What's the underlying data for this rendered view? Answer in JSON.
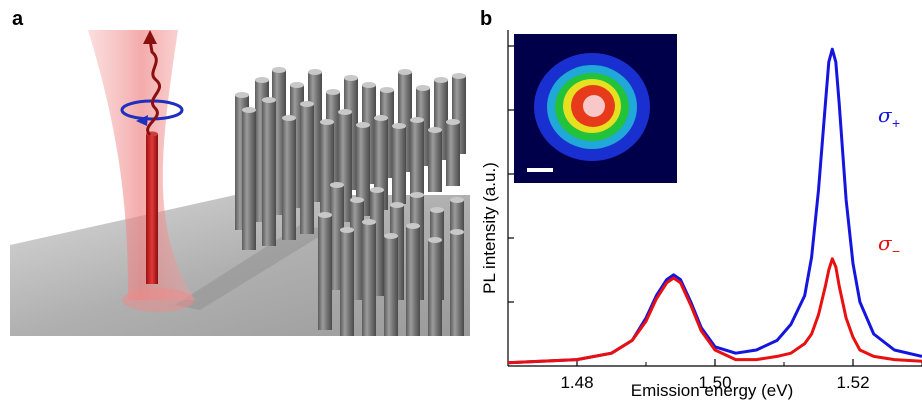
{
  "figure": {
    "panel_a_label": "a",
    "panel_b_label": "b"
  },
  "chart_data": {
    "type": "line",
    "xlabel": "Emission energy (eV)",
    "ylabel": "PL intensity (a.u.)",
    "xlim": [
      1.47,
      1.53
    ],
    "ylim": [
      0,
      1.05
    ],
    "xticks": [
      "1.48",
      "1.50",
      "1.52"
    ],
    "grid": false,
    "inset": "emission spot image (false-color) with scale bar",
    "series": [
      {
        "name": "σ+",
        "color": "#1515e0",
        "x": [
          1.47,
          1.48,
          1.485,
          1.488,
          1.49,
          1.4915,
          1.493,
          1.494,
          1.495,
          1.4965,
          1.498,
          1.5,
          1.503,
          1.506,
          1.509,
          1.511,
          1.513,
          1.514,
          1.515,
          1.516,
          1.5165,
          1.517,
          1.5175,
          1.518,
          1.519,
          1.52,
          1.521,
          1.523,
          1.526,
          1.53
        ],
        "values": [
          0.01,
          0.02,
          0.04,
          0.08,
          0.15,
          0.22,
          0.27,
          0.285,
          0.27,
          0.2,
          0.12,
          0.06,
          0.04,
          0.05,
          0.08,
          0.13,
          0.22,
          0.34,
          0.55,
          0.82,
          0.95,
          0.99,
          0.95,
          0.82,
          0.52,
          0.32,
          0.2,
          0.1,
          0.05,
          0.03
        ]
      },
      {
        "name": "σ−",
        "color": "#e81010",
        "x": [
          1.47,
          1.48,
          1.485,
          1.488,
          1.49,
          1.4915,
          1.493,
          1.494,
          1.495,
          1.4965,
          1.498,
          1.5,
          1.503,
          1.506,
          1.509,
          1.511,
          1.513,
          1.514,
          1.515,
          1.516,
          1.5165,
          1.517,
          1.5175,
          1.518,
          1.519,
          1.52,
          1.521,
          1.523,
          1.526,
          1.53
        ],
        "values": [
          0.01,
          0.02,
          0.04,
          0.08,
          0.14,
          0.21,
          0.26,
          0.275,
          0.26,
          0.19,
          0.11,
          0.05,
          0.02,
          0.02,
          0.03,
          0.04,
          0.07,
          0.1,
          0.16,
          0.25,
          0.3,
          0.335,
          0.31,
          0.25,
          0.15,
          0.09,
          0.05,
          0.03,
          0.02,
          0.015
        ]
      }
    ],
    "legend_labels": [
      {
        "symbol": "σ",
        "sub": "+",
        "color": "#1515e0"
      },
      {
        "symbol": "σ",
        "sub": "−",
        "color": "#e81010"
      }
    ],
    "inset_scale_bar": true
  }
}
